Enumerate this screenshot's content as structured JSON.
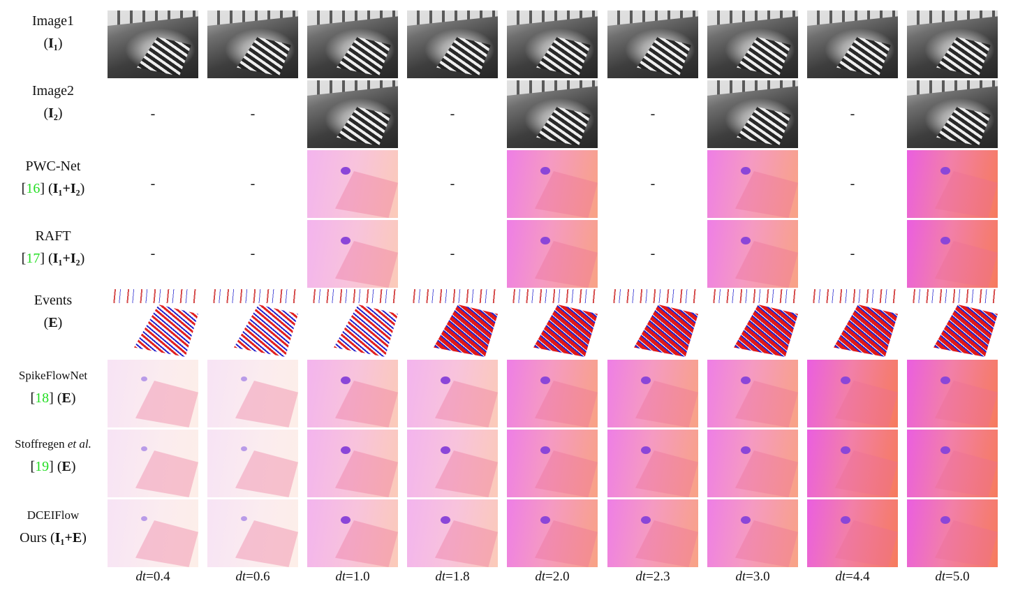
{
  "rows": [
    {
      "line1": "Image1",
      "line2_pre": "(",
      "line2_bold": "I₁",
      "line2_post": ")"
    },
    {
      "line1": "Image2",
      "line2_pre": "(",
      "line2_bold": "I₂",
      "line2_post": ")"
    },
    {
      "line1": "PWC-Net",
      "ref": "16",
      "bold": "I₁+I₂"
    },
    {
      "line1": "RAFT",
      "ref": "17",
      "bold": "I₁+I₂"
    },
    {
      "line1": "Events",
      "line2_pre": "(",
      "line2_bold": "E",
      "line2_post": ")"
    },
    {
      "line1": "SpikeFlowNet",
      "ref": "18",
      "bold": "E"
    },
    {
      "line1": "Stoffregen",
      "line1_italic": "et al.",
      "ref": "19",
      "bold": "E"
    },
    {
      "line1": "DCEIFlow",
      "line2_pre": "Ours (",
      "line2_bold": "I₁+E",
      "line2_post": ")"
    }
  ],
  "columns": [
    {
      "var": "dt",
      "value": "=0.4"
    },
    {
      "var": "dt",
      "value": "=0.6"
    },
    {
      "var": "dt",
      "value": "=1.0"
    },
    {
      "var": "dt",
      "value": "=1.8"
    },
    {
      "var": "dt",
      "value": "=2.0"
    },
    {
      "var": "dt",
      "value": "=2.3"
    },
    {
      "var": "dt",
      "value": "=3.0"
    },
    {
      "var": "dt",
      "value": "=4.4"
    },
    {
      "var": "dt",
      "value": "=5.0"
    }
  ],
  "missing_marker": "-",
  "cells": [
    [
      "image",
      "image",
      "image",
      "image",
      "image",
      "image",
      "image",
      "image",
      "image"
    ],
    [
      "-",
      "-",
      "image",
      "-",
      "image",
      "-",
      "image",
      "-",
      "image"
    ],
    [
      "-",
      "-",
      "flow",
      "-",
      "flow",
      "-",
      "flow",
      "-",
      "flow"
    ],
    [
      "-",
      "-",
      "flow",
      "-",
      "flow",
      "-",
      "flow",
      "-",
      "flow"
    ],
    [
      "events",
      "events",
      "events",
      "events",
      "events",
      "events",
      "events",
      "events",
      "events"
    ],
    [
      "flow",
      "flow",
      "flow",
      "flow",
      "flow",
      "flow",
      "flow",
      "flow",
      "flow"
    ],
    [
      "flow",
      "flow",
      "flow",
      "flow",
      "flow",
      "flow",
      "flow",
      "flow",
      "flow"
    ],
    [
      "flow",
      "flow",
      "flow",
      "flow",
      "flow",
      "flow",
      "flow",
      "flow",
      "flow"
    ]
  ]
}
